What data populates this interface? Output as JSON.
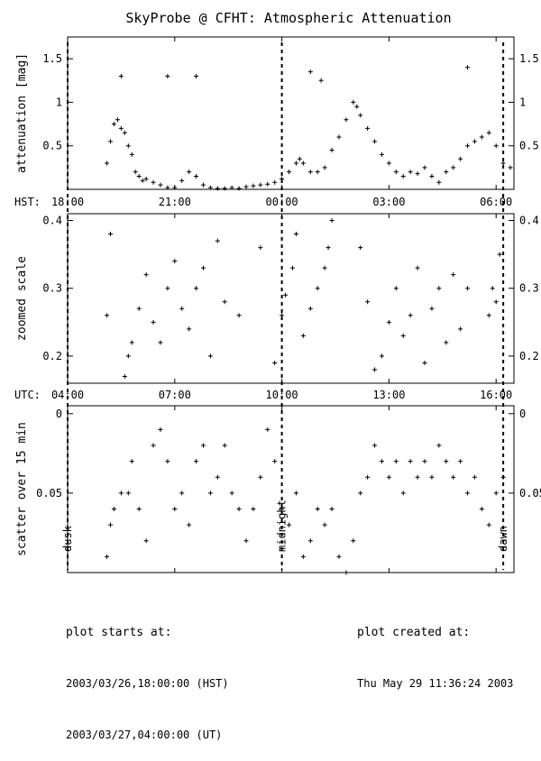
{
  "chart_data": {
    "type": "scatter",
    "title": "SkyProbe @ CFHT: Atmospheric Attenuation",
    "x_range_hst_hours": [
      18,
      30.5
    ],
    "hst_label": "HST:",
    "utc_label": "UTC:",
    "hst_ticks": [
      {
        "x": 18,
        "label": "18:00"
      },
      {
        "x": 21,
        "label": "21:00"
      },
      {
        "x": 24,
        "label": "00:00"
      },
      {
        "x": 27,
        "label": "03:00"
      },
      {
        "x": 30,
        "label": "06:00"
      }
    ],
    "utc_ticks": [
      {
        "x": 18,
        "label": "04:00"
      },
      {
        "x": 21,
        "label": "07:00"
      },
      {
        "x": 24,
        "label": "10:00"
      },
      {
        "x": 27,
        "label": "13:00"
      },
      {
        "x": 30,
        "label": "16:00"
      }
    ],
    "markers": [
      {
        "x": 18.0,
        "label": "dusk"
      },
      {
        "x": 24.0,
        "label": "midnight"
      },
      {
        "x": 30.2,
        "label": "dawn"
      }
    ],
    "panels": [
      {
        "name": "attenuation",
        "ylabel": "attenuation [mag]",
        "ylim": [
          1.75,
          0.0
        ],
        "ticks": [
          0.5,
          1,
          1.5
        ],
        "tick_labels": [
          "0.5",
          "1",
          "1.5"
        ],
        "points": [
          [
            19.1,
            0.3
          ],
          [
            19.2,
            0.55
          ],
          [
            19.3,
            0.75
          ],
          [
            19.4,
            0.8
          ],
          [
            19.5,
            0.7
          ],
          [
            19.6,
            0.65
          ],
          [
            19.7,
            0.5
          ],
          [
            19.8,
            0.4
          ],
          [
            19.9,
            0.2
          ],
          [
            20.0,
            0.15
          ],
          [
            20.1,
            0.1
          ],
          [
            20.2,
            0.12
          ],
          [
            20.4,
            0.08
          ],
          [
            20.6,
            0.05
          ],
          [
            20.8,
            0.02
          ],
          [
            21.0,
            0.02
          ],
          [
            21.2,
            0.1
          ],
          [
            21.4,
            0.2
          ],
          [
            21.6,
            0.15
          ],
          [
            21.8,
            0.05
          ],
          [
            22.0,
            0.02
          ],
          [
            22.2,
            0.01
          ],
          [
            22.4,
            0.01
          ],
          [
            22.6,
            0.02
          ],
          [
            22.8,
            0.01
          ],
          [
            23.0,
            0.03
          ],
          [
            23.2,
            0.04
          ],
          [
            23.4,
            0.05
          ],
          [
            23.6,
            0.06
          ],
          [
            23.8,
            0.08
          ],
          [
            24.0,
            0.12
          ],
          [
            24.2,
            0.2
          ],
          [
            24.4,
            0.3
          ],
          [
            24.5,
            0.35
          ],
          [
            24.6,
            0.3
          ],
          [
            24.8,
            0.2
          ],
          [
            25.0,
            0.2
          ],
          [
            25.2,
            0.25
          ],
          [
            25.4,
            0.45
          ],
          [
            25.6,
            0.6
          ],
          [
            25.8,
            0.8
          ],
          [
            26.0,
            1.0
          ],
          [
            26.1,
            0.95
          ],
          [
            26.2,
            0.85
          ],
          [
            26.4,
            0.7
          ],
          [
            26.6,
            0.55
          ],
          [
            26.8,
            0.4
          ],
          [
            27.0,
            0.3
          ],
          [
            27.2,
            0.2
          ],
          [
            27.4,
            0.15
          ],
          [
            27.6,
            0.2
          ],
          [
            27.8,
            0.18
          ],
          [
            28.0,
            0.25
          ],
          [
            28.2,
            0.15
          ],
          [
            28.4,
            0.08
          ],
          [
            28.6,
            0.2
          ],
          [
            28.8,
            0.25
          ],
          [
            29.0,
            0.35
          ],
          [
            29.2,
            0.5
          ],
          [
            29.4,
            0.55
          ],
          [
            29.6,
            0.6
          ],
          [
            29.8,
            0.65
          ],
          [
            30.0,
            0.5
          ],
          [
            30.2,
            0.3
          ],
          [
            30.4,
            0.25
          ],
          [
            19.5,
            1.3
          ],
          [
            20.8,
            1.3
          ],
          [
            21.6,
            1.3
          ],
          [
            24.8,
            1.35
          ],
          [
            25.1,
            1.25
          ],
          [
            29.2,
            1.4
          ]
        ]
      },
      {
        "name": "zoomed",
        "ylabel": "zoomed scale",
        "ylim": [
          0.41,
          0.16
        ],
        "ticks": [
          0.2,
          0.3,
          0.4
        ],
        "tick_labels": [
          "0.2",
          "0.3",
          "0.4"
        ],
        "points": [
          [
            19.1,
            0.26
          ],
          [
            19.2,
            0.38
          ],
          [
            19.6,
            0.17
          ],
          [
            19.7,
            0.2
          ],
          [
            19.8,
            0.22
          ],
          [
            20.0,
            0.27
          ],
          [
            20.2,
            0.32
          ],
          [
            20.4,
            0.25
          ],
          [
            20.6,
            0.22
          ],
          [
            20.8,
            0.3
          ],
          [
            21.0,
            0.34
          ],
          [
            21.2,
            0.27
          ],
          [
            21.4,
            0.24
          ],
          [
            21.6,
            0.3
          ],
          [
            21.8,
            0.33
          ],
          [
            22.0,
            0.2
          ],
          [
            22.2,
            0.37
          ],
          [
            22.4,
            0.28
          ],
          [
            22.8,
            0.26
          ],
          [
            23.4,
            0.36
          ],
          [
            23.8,
            0.19
          ],
          [
            24.0,
            0.26
          ],
          [
            24.1,
            0.29
          ],
          [
            24.3,
            0.33
          ],
          [
            24.4,
            0.38
          ],
          [
            24.6,
            0.23
          ],
          [
            24.8,
            0.27
          ],
          [
            25.0,
            0.3
          ],
          [
            25.2,
            0.33
          ],
          [
            25.3,
            0.36
          ],
          [
            25.4,
            0.4
          ],
          [
            26.2,
            0.36
          ],
          [
            26.4,
            0.28
          ],
          [
            26.6,
            0.18
          ],
          [
            26.8,
            0.2
          ],
          [
            27.0,
            0.25
          ],
          [
            27.2,
            0.3
          ],
          [
            27.4,
            0.23
          ],
          [
            27.6,
            0.26
          ],
          [
            27.8,
            0.33
          ],
          [
            28.0,
            0.19
          ],
          [
            28.2,
            0.27
          ],
          [
            28.4,
            0.3
          ],
          [
            28.6,
            0.22
          ],
          [
            28.8,
            0.32
          ],
          [
            29.0,
            0.24
          ],
          [
            29.2,
            0.3
          ],
          [
            29.8,
            0.26
          ],
          [
            29.9,
            0.3
          ],
          [
            30.0,
            0.28
          ],
          [
            30.1,
            0.35
          ]
        ]
      },
      {
        "name": "scatter",
        "ylabel": "scatter over 15 min",
        "ylim": [
          -0.005,
          0.1
        ],
        "ticks": [
          0,
          0.05
        ],
        "tick_labels": [
          "0",
          "0.05"
        ],
        "points": [
          [
            19.1,
            0.09
          ],
          [
            19.2,
            0.07
          ],
          [
            19.3,
            0.06
          ],
          [
            19.5,
            0.05
          ],
          [
            19.7,
            0.05
          ],
          [
            19.8,
            0.03
          ],
          [
            20.0,
            0.06
          ],
          [
            20.2,
            0.08
          ],
          [
            20.4,
            0.02
          ],
          [
            20.6,
            0.01
          ],
          [
            20.8,
            0.03
          ],
          [
            21.0,
            0.06
          ],
          [
            21.2,
            0.05
          ],
          [
            21.4,
            0.07
          ],
          [
            21.6,
            0.03
          ],
          [
            21.8,
            0.02
          ],
          [
            22.0,
            0.05
          ],
          [
            22.2,
            0.04
          ],
          [
            22.4,
            0.02
          ],
          [
            22.6,
            0.05
          ],
          [
            22.8,
            0.06
          ],
          [
            23.0,
            0.08
          ],
          [
            23.2,
            0.06
          ],
          [
            23.4,
            0.04
          ],
          [
            23.6,
            0.01
          ],
          [
            23.8,
            0.03
          ],
          [
            24.0,
            0.06
          ],
          [
            24.2,
            0.07
          ],
          [
            24.4,
            0.05
          ],
          [
            24.6,
            0.09
          ],
          [
            24.8,
            0.08
          ],
          [
            25.0,
            0.06
          ],
          [
            25.2,
            0.07
          ],
          [
            25.4,
            0.06
          ],
          [
            25.6,
            0.09
          ],
          [
            25.8,
            0.1
          ],
          [
            26.0,
            0.08
          ],
          [
            26.2,
            0.05
          ],
          [
            26.4,
            0.04
          ],
          [
            26.6,
            0.02
          ],
          [
            26.8,
            0.03
          ],
          [
            27.0,
            0.04
          ],
          [
            27.2,
            0.03
          ],
          [
            27.4,
            0.05
          ],
          [
            27.6,
            0.03
          ],
          [
            27.8,
            0.04
          ],
          [
            28.0,
            0.03
          ],
          [
            28.2,
            0.04
          ],
          [
            28.4,
            0.02
          ],
          [
            28.6,
            0.03
          ],
          [
            28.8,
            0.04
          ],
          [
            29.0,
            0.03
          ],
          [
            29.2,
            0.05
          ],
          [
            29.4,
            0.04
          ],
          [
            29.6,
            0.06
          ],
          [
            29.8,
            0.07
          ],
          [
            30.0,
            0.05
          ],
          [
            30.2,
            0.04
          ]
        ]
      }
    ]
  },
  "footer": {
    "left_heading": "plot starts at:",
    "left_line1": "2003/03/26,18:00:00 (HST)",
    "left_line2": "2003/03/27,04:00:00 (UT)",
    "right_heading": "plot created at:",
    "right_line1": "Thu May 29 11:36:24 2003"
  }
}
